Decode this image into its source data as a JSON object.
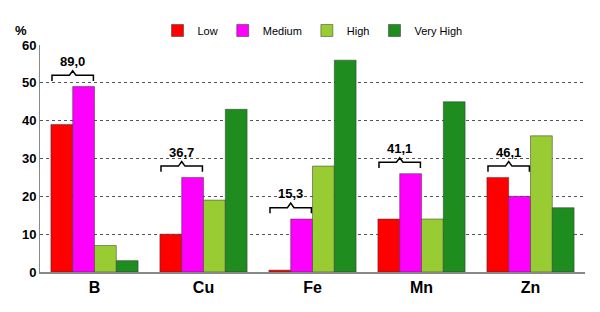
{
  "chart_data": {
    "type": "bar",
    "y_label": "%",
    "categories": [
      "B",
      "Cu",
      "Fe",
      "Mn",
      "Zn"
    ],
    "series": [
      {
        "name": "Low",
        "color": "#ff0000",
        "values": [
          39,
          10,
          0.5,
          14,
          25
        ]
      },
      {
        "name": "Medium",
        "color": "#ff00ff",
        "values": [
          49,
          25,
          14,
          26,
          20
        ]
      },
      {
        "name": "High",
        "color": "#99cc33",
        "values": [
          7,
          19,
          28,
          14,
          36
        ]
      },
      {
        "name": "Very High",
        "color": "#1e8c1e",
        "values": [
          3,
          43,
          56,
          45,
          17
        ]
      }
    ],
    "annotations": [
      {
        "category": "B",
        "text": "89,0"
      },
      {
        "category": "Cu",
        "text": "36,7"
      },
      {
        "category": "Fe",
        "text": "15,3"
      },
      {
        "category": "Mn",
        "text": "41,1"
      },
      {
        "category": "Zn",
        "text": "46,1"
      }
    ],
    "ylim": [
      0,
      60
    ],
    "yticks": [
      0,
      10,
      20,
      30,
      40,
      50,
      60
    ],
    "grid": true,
    "legend": "top"
  }
}
